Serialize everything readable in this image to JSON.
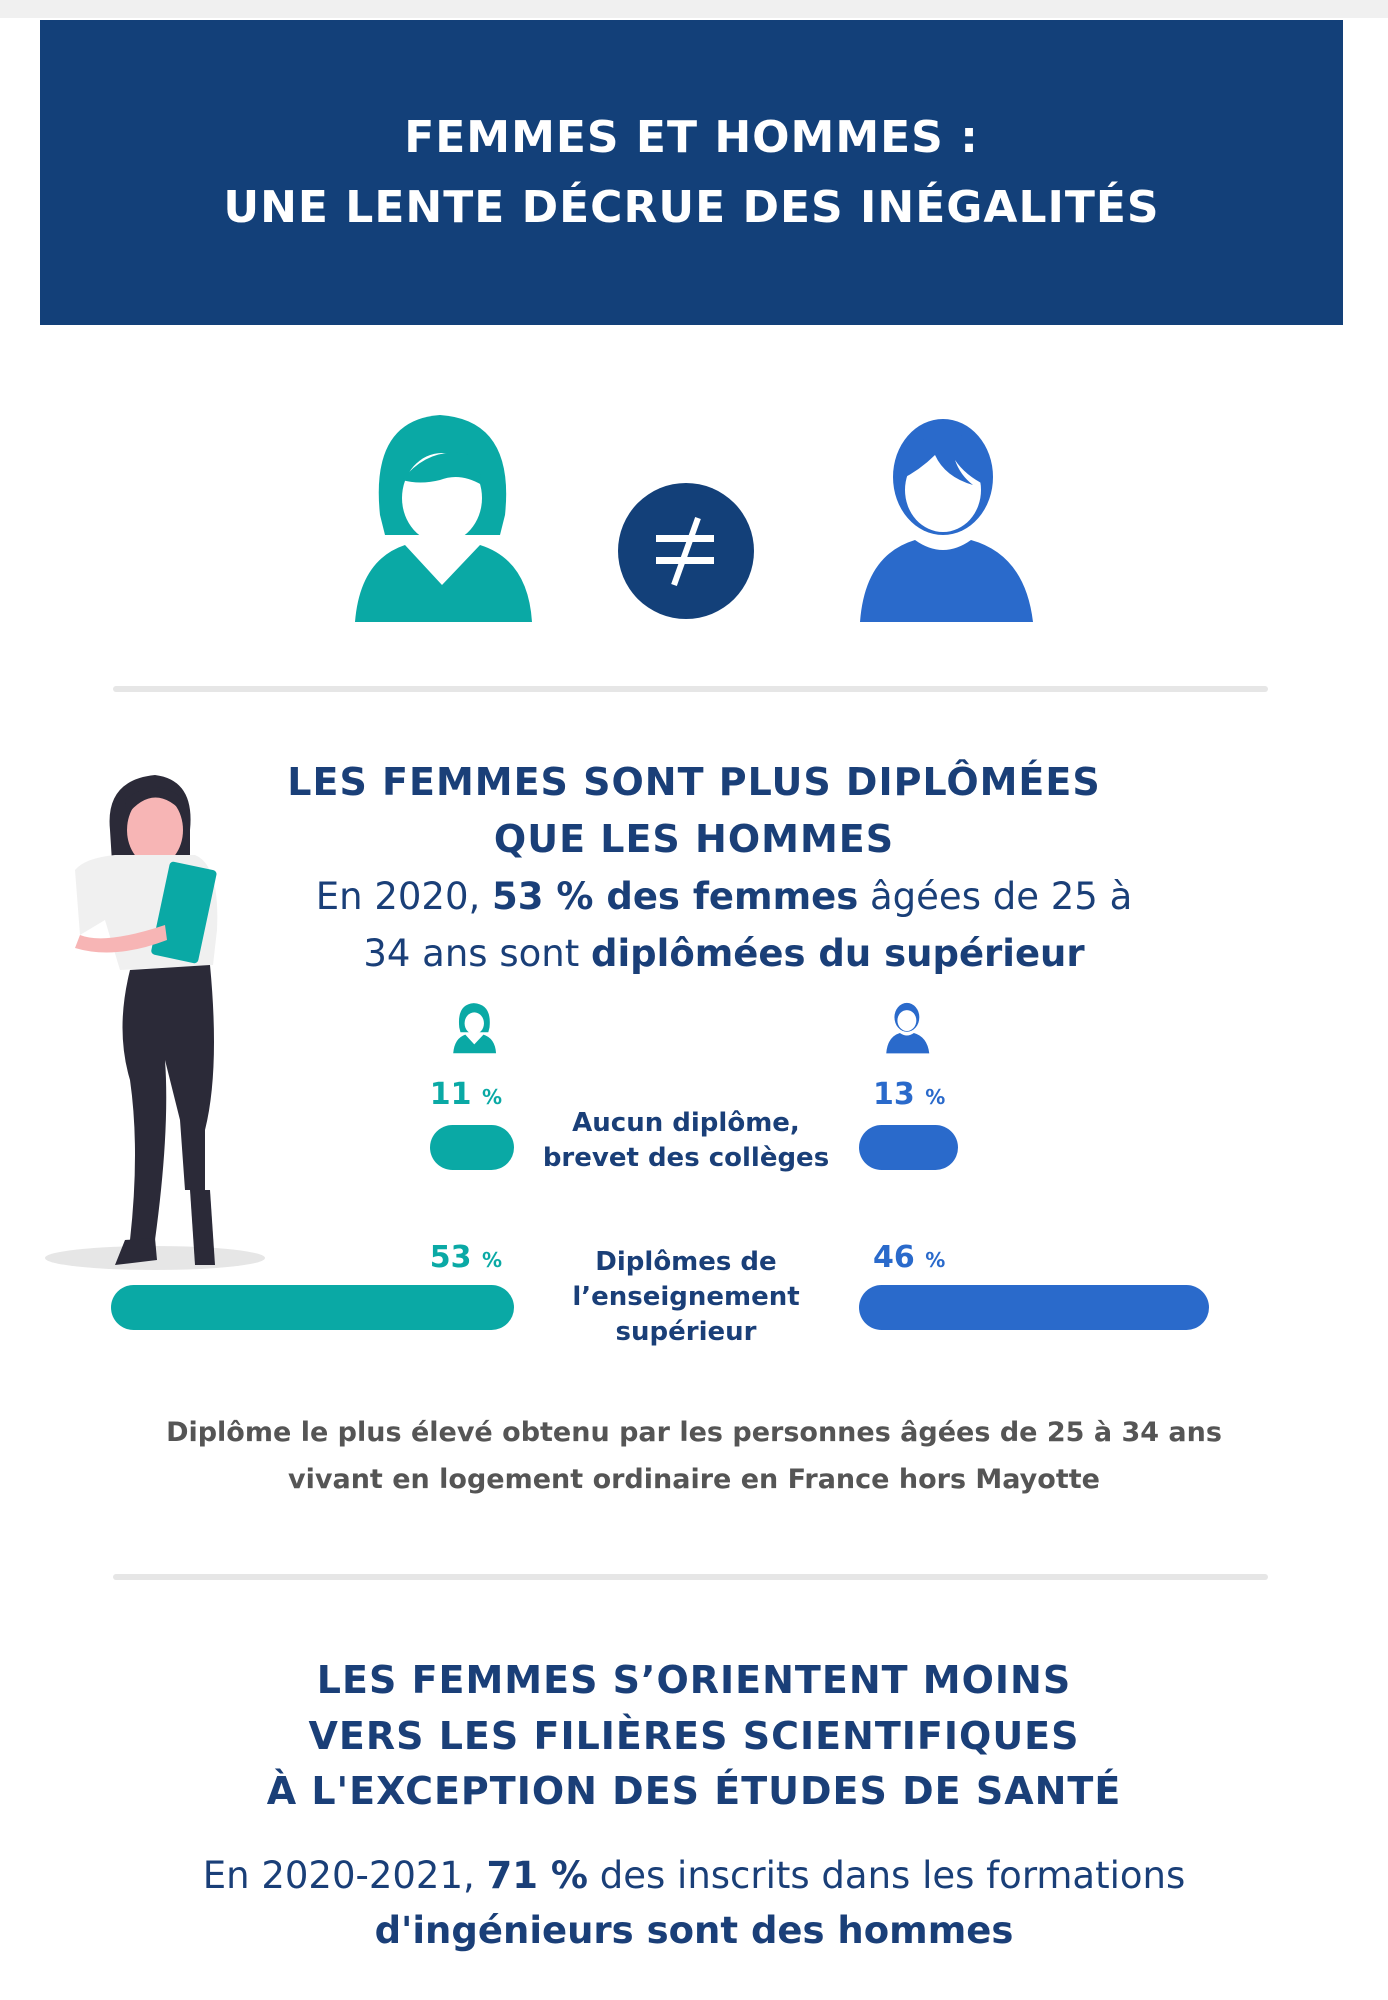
{
  "header": {
    "title_line1": "FEMMES ET HOMMES :",
    "title_line2": "UNE LENTE DÉCRUE DES INÉGALITÉS"
  },
  "icons": {
    "woman": "woman-avatar-icon",
    "not_equal": "not-equal-icon",
    "man": "man-avatar-icon",
    "colors": {
      "women": "#0aa9a5",
      "men": "#2a6acb",
      "navy": "#134079"
    }
  },
  "section1": {
    "heading_line1": "LES FEMMES SONT PLUS DIPLÔMÉES",
    "heading_line2": "QUE LES HOMMES",
    "sub_line1": {
      "a": "En 2020, ",
      "b": "53 % des femmes",
      "c": " âgées de 25 à"
    },
    "sub_line2": {
      "a": "34 ans sont ",
      "b": "diplômées du supérieur"
    },
    "caption_line1": "Diplôme le plus élevé obtenu par les personnes âgées de 25 à 34 ans",
    "caption_line2": "vivant en logement ordinaire en France hors Mayotte"
  },
  "chart_data": {
    "type": "bar",
    "orientation": "horizontal-butterfly",
    "unit": "%",
    "categories": [
      "Aucun diplôme, brevet des collèges",
      "Diplômes de l’enseignement supérieur"
    ],
    "category_lines": [
      [
        "Aucun diplôme,",
        "brevet des collèges"
      ],
      [
        "Diplômes de",
        "l’enseignement",
        "supérieur"
      ]
    ],
    "series": [
      {
        "icon": "woman-icon",
        "color": "#0aa9a5",
        "values": [
          11,
          53
        ],
        "labels": [
          "11",
          "53"
        ]
      },
      {
        "icon": "man-icon",
        "color": "#2a6acb",
        "values": [
          13,
          46
        ],
        "labels": [
          "13",
          "46"
        ]
      }
    ]
  },
  "section2": {
    "heading_line1": "LES FEMMES S’ORIENTENT MOINS",
    "heading_line2": "VERS LES FILIÈRES SCIENTIFIQUES",
    "heading_line3": "À L'EXCEPTION DES ÉTUDES DE SANTÉ",
    "sub_line1": {
      "a": "En 2020-2021, ",
      "b": "71 %",
      "c": " des inscrits dans les formations"
    },
    "sub_line2": {
      "b": "d'ingénieurs sont des hommes"
    }
  }
}
